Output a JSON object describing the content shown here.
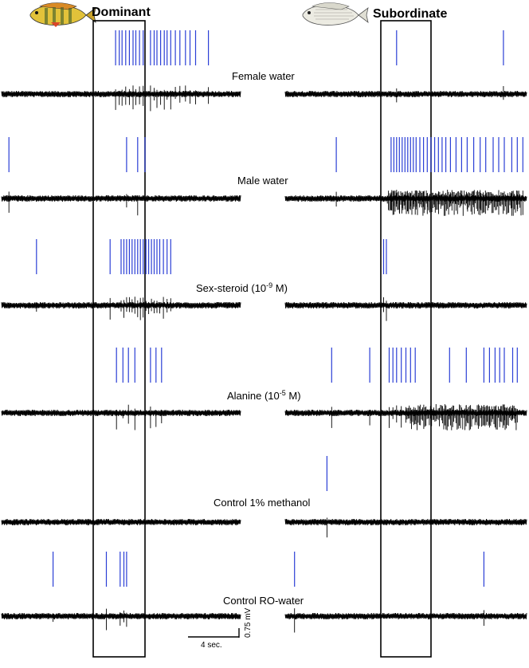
{
  "titles": {
    "dominant": "Dominant",
    "subordinate": "Subordinate"
  },
  "icons": {
    "dominant": "cichlid-fish-colored-icon",
    "subordinate": "cichlid-fish-pale-icon"
  },
  "colors": {
    "spike": "#2b3fd6",
    "trace": "#000000",
    "background": "#ffffff"
  },
  "chart_data": {
    "type": "line",
    "description_units": "time in seconds",
    "trace_duration": 26,
    "window": [
      10,
      16
    ],
    "conditions": [
      {
        "label": "Female water",
        "dominant_spikes": [
          12.4,
          12.8,
          13.1,
          13.5,
          13.9,
          14.3,
          14.6,
          15.0,
          15.4,
          16.2,
          16.6,
          16.9,
          17.3,
          17.7,
          18.0,
          18.4,
          18.9,
          19.4,
          20.0,
          20.5,
          21.1,
          22.5
        ],
        "subordinate_spikes": [
          12.0,
          23.5
        ]
      },
      {
        "label": "Male water",
        "dominant_spikes": [
          0.8,
          13.6,
          14.8,
          15.6
        ],
        "subordinate_spikes": [
          5.5,
          11.4,
          11.7,
          12.0,
          12.3,
          12.6,
          12.9,
          13.2,
          13.5,
          13.8,
          14.1,
          14.5,
          14.9,
          15.3,
          15.7,
          16.1,
          16.5,
          16.9,
          17.3,
          17.8,
          18.4,
          19.0,
          19.6,
          20.3,
          21.0,
          21.6,
          22.4,
          23.0,
          23.6,
          24.4,
          25.0,
          25.6
        ],
        "subordinate_burst": [
          11.0,
          25.5
        ]
      },
      {
        "label": "Sex-steroid (10",
        "label_exp": "-9",
        "label_end": " M)",
        "dominant_spikes": [
          3.8,
          11.8,
          13.0,
          13.3,
          13.6,
          13.9,
          14.2,
          14.5,
          14.8,
          15.1,
          15.4,
          15.7,
          16.0,
          16.3,
          16.6,
          16.9,
          17.2,
          17.6,
          18.0,
          18.4
        ],
        "subordinate_spikes": [
          10.6,
          10.9
        ]
      },
      {
        "label": "Alanine (10",
        "label_exp": "-5",
        "label_end": " M)",
        "dominant_spikes": [
          12.5,
          13.2,
          13.8,
          14.5,
          16.2,
          16.8,
          17.4
        ],
        "subordinate_spikes": [
          5.0,
          9.1,
          11.2,
          11.6,
          12.0,
          12.5,
          13.0,
          13.5,
          14.0,
          17.7,
          19.5,
          21.4,
          22.0,
          22.6,
          23.1,
          23.6,
          24.5,
          25.0
        ],
        "subordinate_burst": [
          13.0,
          25.0
        ]
      },
      {
        "label": "Control 1% methanol",
        "dominant_spikes": [],
        "subordinate_spikes": [
          4.5
        ]
      },
      {
        "label": "Control RO-water",
        "dominant_spikes": [
          5.6,
          11.4,
          12.9,
          13.3,
          13.6
        ],
        "subordinate_spikes": [
          1.0,
          21.4
        ]
      }
    ],
    "scale_bar": {
      "time_label": "4 sec.",
      "voltage_label": "0.75 mV",
      "time_seconds": 4
    }
  }
}
